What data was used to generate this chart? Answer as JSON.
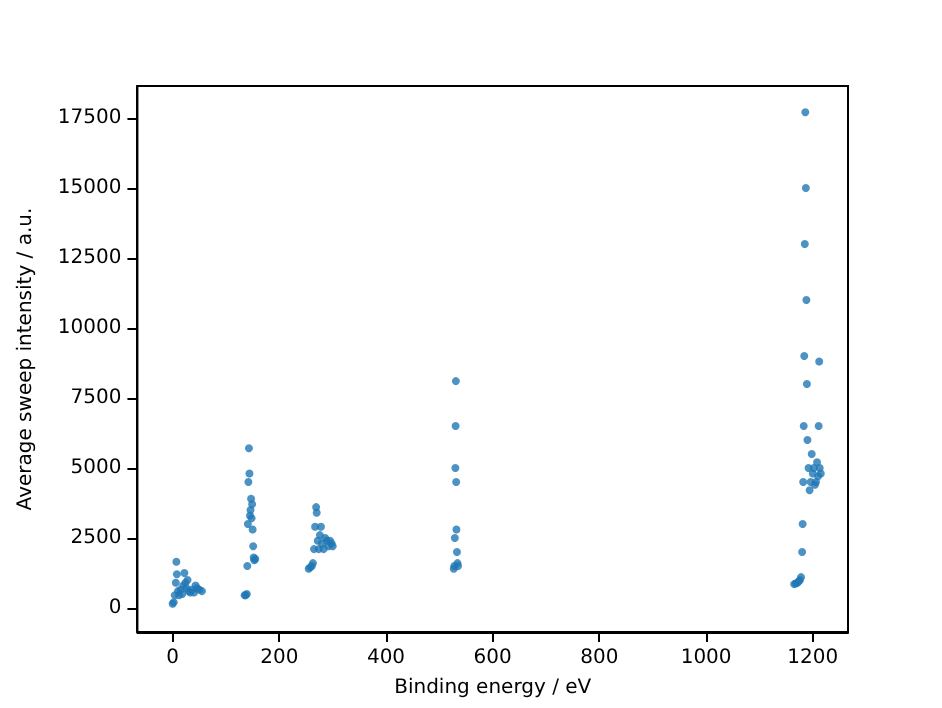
{
  "chart_data": {
    "type": "scatter",
    "xlabel": "Binding energy / eV",
    "ylabel": "Average sweep intensity / a.u.",
    "x": [
      0,
      2,
      4,
      6,
      7,
      8,
      10,
      12,
      15,
      18,
      20,
      22,
      24,
      26,
      28,
      30,
      33,
      36,
      40,
      43,
      46,
      50,
      55,
      135,
      137,
      139,
      140,
      141,
      142,
      143,
      144,
      145,
      146,
      147,
      148,
      149,
      150,
      151,
      152,
      153,
      155,
      255,
      258,
      261,
      263,
      265,
      267,
      269,
      270,
      272,
      274,
      276,
      278,
      280,
      283,
      286,
      289,
      292,
      295,
      298,
      300,
      527,
      528,
      529,
      530,
      530.5,
      531,
      531.5,
      532,
      533,
      534,
      535,
      1165,
      1168,
      1171,
      1174,
      1176,
      1178,
      1180,
      1181,
      1182,
      1183,
      1184,
      1185,
      1186,
      1187,
      1188,
      1189,
      1190,
      1192,
      1194,
      1196,
      1198,
      1200,
      1202,
      1204,
      1206,
      1208,
      1210,
      1211,
      1212,
      1213,
      1215
    ],
    "series": [
      {
        "color": "#1f77b4",
        "values": [
          150,
          200,
          450,
          900,
          1650,
          1200,
          600,
          450,
          650,
          500,
          800,
          1250,
          900,
          700,
          1000,
          600,
          550,
          650,
          550,
          800,
          700,
          650,
          600,
          450,
          450,
          500,
          1500,
          3000,
          4500,
          5700,
          4800,
          3300,
          3500,
          3900,
          3200,
          3700,
          2800,
          2200,
          1800,
          1700,
          1750,
          1400,
          1450,
          1500,
          1600,
          2100,
          2900,
          3600,
          3400,
          2400,
          2100,
          2600,
          2900,
          2300,
          2100,
          2500,
          2400,
          2200,
          2400,
          2300,
          2200,
          1400,
          1500,
          2500,
          5000,
          6500,
          8100,
          4500,
          2800,
          2000,
          1600,
          1500,
          850,
          870,
          900,
          950,
          1000,
          1100,
          2000,
          3000,
          4500,
          6500,
          9000,
          13000,
          17700,
          15000,
          11000,
          8000,
          6000,
          5000,
          4200,
          4500,
          5500,
          4800,
          5000,
          4400,
          4500,
          5200,
          4700,
          6500,
          8800,
          5000,
          4800
        ]
      }
    ],
    "xlim": [
      -66,
      1266
    ],
    "ylim": [
      -860,
      18640
    ],
    "xticks": [
      0,
      200,
      400,
      600,
      800,
      1000,
      1200
    ],
    "yticks": [
      0,
      2500,
      5000,
      7500,
      10000,
      12500,
      15000,
      17500
    ],
    "marker": "circle",
    "grid": false
  }
}
